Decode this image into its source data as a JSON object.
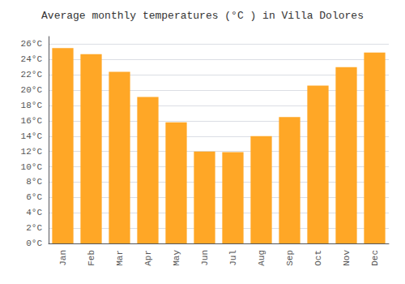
{
  "chart_data": {
    "type": "bar",
    "title": "Average monthly temperatures (°C ) in Villa Dolores",
    "categories": [
      "Jan",
      "Feb",
      "Mar",
      "Apr",
      "May",
      "Jun",
      "Jul",
      "Aug",
      "Sep",
      "Oct",
      "Nov",
      "Dec"
    ],
    "values": [
      25.5,
      24.7,
      22.4,
      19.1,
      15.8,
      12.0,
      11.9,
      14.0,
      16.5,
      20.6,
      23.0,
      24.9
    ],
    "color": "#FFA726",
    "ylim": [
      0,
      27
    ],
    "yticks": [
      {
        "value": 0,
        "label": "0°C"
      },
      {
        "value": 2,
        "label": "2°C"
      },
      {
        "value": 4,
        "label": "4°C"
      },
      {
        "value": 6,
        "label": "6°C"
      },
      {
        "value": 8,
        "label": "8°C"
      },
      {
        "value": 10,
        "label": "10°C"
      },
      {
        "value": 12,
        "label": "12°C"
      },
      {
        "value": 14,
        "label": "14°C"
      },
      {
        "value": 16,
        "label": "16°C"
      },
      {
        "value": 18,
        "label": "18°C"
      },
      {
        "value": 20,
        "label": "20°C"
      },
      {
        "value": 22,
        "label": "22°C"
      },
      {
        "value": 24,
        "label": "24°C"
      },
      {
        "value": 26,
        "label": "26°C"
      }
    ],
    "grid": true
  }
}
